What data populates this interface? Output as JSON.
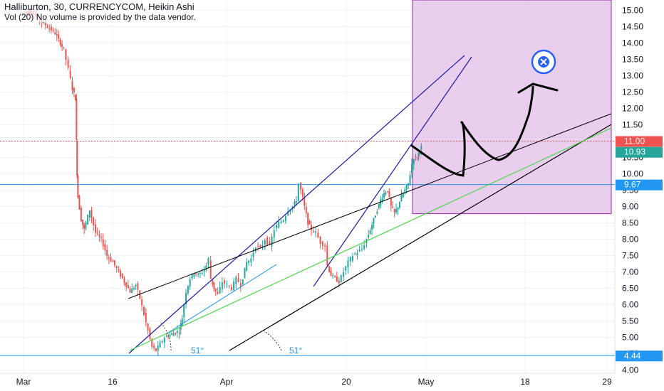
{
  "header": {
    "symbol_line": "Halliburton, 30, CURRENCYCOM, Heikin Ashi",
    "volume_line": "Vol (20) No volume is provided by the data vendor."
  },
  "colors": {
    "up": "#26a69a",
    "down": "#ef5350",
    "forecast_box": "#e1bee7",
    "forecast_border": "#9c27b0",
    "line_blue": "#1a1ab0",
    "line_lightblue": "#2196f3",
    "line_green": "#4cd84c",
    "line_black": "#000000",
    "hline": "#2196f3"
  },
  "chart_data": {
    "type": "candlestick",
    "title": "Halliburton, 30, CURRENCYCOM, Heikin Ashi",
    "ylim": [
      3.75,
      15.15
    ],
    "y_ticks": [
      "4.00",
      "4.50",
      "5.00",
      "5.50",
      "6.00",
      "6.50",
      "7.00",
      "7.50",
      "8.00",
      "8.50",
      "9.00",
      "9.50",
      "10.00",
      "10.50",
      "11.00",
      "11.50",
      "12.00",
      "12.50",
      "13.00",
      "13.50",
      "14.00",
      "14.50",
      "15.00"
    ],
    "x_ticks": [
      "Mar",
      "16",
      "Apr",
      "20",
      "May",
      "18",
      "29"
    ],
    "price_path": [
      [
        0.0,
        14.9
      ],
      [
        2.0,
        14.95
      ],
      [
        4.0,
        14.6
      ],
      [
        6.0,
        14.3
      ],
      [
        7.5,
        13.8
      ],
      [
        8.3,
        13.2
      ],
      [
        9.0,
        12.6
      ],
      [
        9.5,
        12.3
      ],
      [
        9.6,
        11.0
      ],
      [
        9.7,
        10.0
      ],
      [
        9.9,
        9.3
      ],
      [
        10.5,
        8.6
      ],
      [
        11.0,
        8.3
      ],
      [
        12.0,
        8.9
      ],
      [
        13.0,
        8.2
      ],
      [
        14.0,
        8.0
      ],
      [
        15.0,
        7.5
      ],
      [
        16.0,
        7.3
      ],
      [
        17.0,
        7.0
      ],
      [
        18.0,
        6.7
      ],
      [
        19.0,
        6.4
      ],
      [
        20.0,
        6.6
      ],
      [
        20.7,
        6.2
      ],
      [
        21.4,
        5.7
      ],
      [
        22.1,
        5.2
      ],
      [
        22.8,
        4.7
      ],
      [
        23.5,
        4.6
      ],
      [
        24.2,
        4.8
      ],
      [
        25.0,
        5.0
      ],
      [
        26.2,
        5.1
      ],
      [
        27.5,
        5.2
      ],
      [
        28.0,
        5.6
      ],
      [
        28.7,
        6.4
      ],
      [
        29.4,
        6.8
      ],
      [
        30.1,
        7.0
      ],
      [
        30.8,
        6.9
      ],
      [
        31.5,
        7.0
      ],
      [
        32.2,
        7.2
      ],
      [
        32.6,
        7.4
      ],
      [
        33.0,
        6.8
      ],
      [
        33.5,
        6.5
      ],
      [
        34.2,
        6.3
      ],
      [
        35.0,
        6.7
      ],
      [
        35.8,
        6.6
      ],
      [
        36.6,
        6.5
      ],
      [
        37.4,
        6.8
      ],
      [
        38.2,
        6.6
      ],
      [
        39.2,
        7.3
      ],
      [
        40.0,
        7.4
      ],
      [
        40.8,
        7.8
      ],
      [
        41.6,
        7.7
      ],
      [
        42.4,
        8.0
      ],
      [
        43.2,
        7.8
      ],
      [
        44.0,
        8.3
      ],
      [
        44.8,
        8.5
      ],
      [
        45.6,
        8.6
      ],
      [
        46.4,
        8.9
      ],
      [
        47.2,
        9.0
      ],
      [
        47.8,
        9.2
      ],
      [
        48.2,
        9.7
      ],
      [
        48.6,
        9.5
      ],
      [
        49.2,
        9.0
      ],
      [
        49.8,
        8.5
      ],
      [
        50.4,
        8.3
      ],
      [
        51.2,
        8.2
      ],
      [
        52.0,
        7.9
      ],
      [
        52.8,
        7.8
      ],
      [
        53.2,
        7.2
      ],
      [
        53.8,
        6.9
      ],
      [
        54.5,
        6.8
      ],
      [
        55.2,
        6.7
      ],
      [
        56.0,
        7.0
      ],
      [
        56.8,
        7.3
      ],
      [
        57.6,
        7.5
      ],
      [
        58.4,
        7.6
      ],
      [
        59.2,
        7.7
      ],
      [
        60.0,
        8.0
      ],
      [
        60.6,
        8.3
      ],
      [
        61.2,
        8.6
      ],
      [
        61.8,
        8.9
      ],
      [
        62.4,
        9.2
      ],
      [
        63.0,
        9.4
      ],
      [
        63.6,
        9.5
      ],
      [
        64.2,
        9.0
      ],
      [
        64.8,
        8.8
      ],
      [
        65.4,
        9.0
      ],
      [
        66.0,
        9.3
      ],
      [
        66.6,
        9.5
      ],
      [
        67.2,
        9.7
      ],
      [
        67.8,
        10.3
      ],
      [
        68.2,
        10.5
      ],
      [
        68.7,
        10.5
      ],
      [
        69.2,
        10.75
      ],
      [
        69.4,
        10.8
      ]
    ],
    "horizontal_levels": [
      {
        "price": 9.67,
        "label": "9.67"
      },
      {
        "price": 4.44,
        "label": "4.44"
      }
    ],
    "price_labels": [
      {
        "price": 11.0,
        "label": "11.00"
      },
      {
        "price": 10.93,
        "label": "10.93"
      }
    ],
    "angle_labels": [
      "51°",
      "51°"
    ]
  }
}
